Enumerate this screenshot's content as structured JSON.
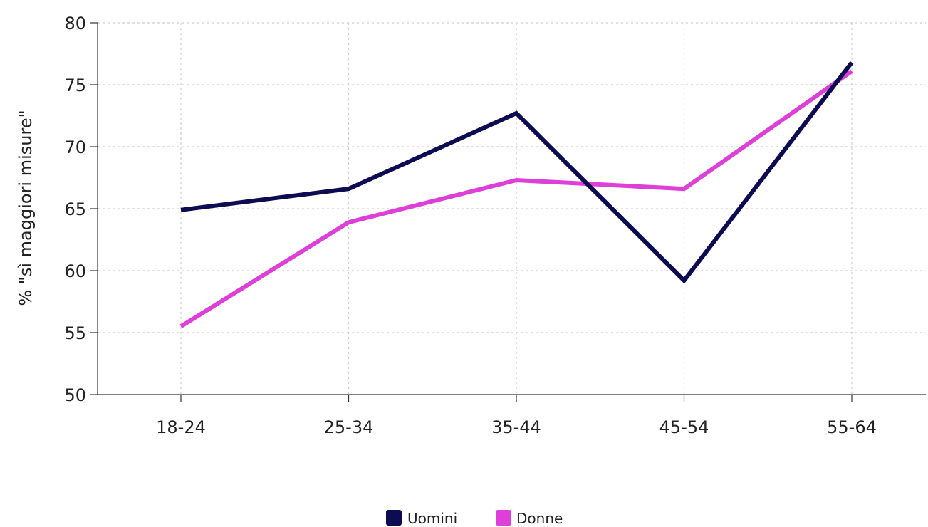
{
  "chart_data": {
    "type": "line",
    "categories": [
      "18-24",
      "25-34",
      "35-44",
      "45-54",
      "55-64"
    ],
    "series": [
      {
        "name": "Uomini",
        "values": [
          64.9,
          66.6,
          72.7,
          59.2,
          76.8
        ],
        "color": "#0d0c52"
      },
      {
        "name": "Donne",
        "values": [
          55.5,
          63.9,
          67.3,
          66.6,
          76.1
        ],
        "color": "#df3fd9"
      }
    ],
    "ylabel": "% \"sì maggiori misure\"",
    "ylim": [
      50,
      80
    ],
    "yticks": [
      50,
      55,
      60,
      65,
      70,
      75,
      80
    ],
    "grid": true,
    "legend": "bottom-center"
  }
}
